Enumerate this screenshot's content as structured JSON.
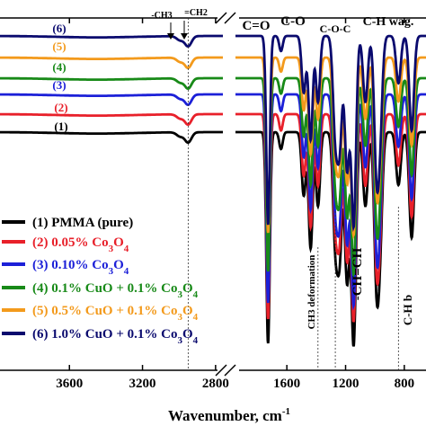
{
  "chart_data": {
    "type": "line",
    "title": "",
    "xlabel": "Wavenumber, cm",
    "xlabel_sup": "-1",
    "ylabel": "",
    "axis_break": true,
    "x_reversed": true,
    "panels": [
      {
        "xlim": [
          3980,
          2760
        ],
        "ticks": [
          3600,
          3200,
          2800
        ]
      },
      {
        "xlim": [
          1950,
          640
        ],
        "ticks": [
          1600,
          1200,
          800
        ]
      }
    ],
    "series": [
      {
        "name": "(1) PMMA (pure)",
        "tag": "(1)",
        "color": "#000000"
      },
      {
        "name": "(2) 0.05% Co3O4",
        "tag": "(2)",
        "color": "#e8202a"
      },
      {
        "name": "(3) 0.10% Co3O4",
        "tag": "(3)",
        "color": "#1c20d8"
      },
      {
        "name": "(4) 0.1% CuO + 0.1% Co3O4",
        "tag": "(4)",
        "color": "#188a18"
      },
      {
        "name": "(5) 0.5% CuO + 0.1% Co3O4",
        "tag": "(5)",
        "color": "#f39a1c"
      },
      {
        "name": "(6) 1.0% CuO + 0.1% Co3O4",
        "tag": "(6)",
        "color": "#0a0a6e"
      }
    ],
    "peaks_left": [
      {
        "x": 2995,
        "depth": 0.12
      },
      {
        "x": 2950,
        "depth": 0.3
      }
    ],
    "peaks_right": [
      {
        "x": 1728,
        "depth": 1.0
      },
      {
        "x": 1640,
        "depth": 0.08
      },
      {
        "x": 1485,
        "depth": 0.3
      },
      {
        "x": 1438,
        "depth": 0.55
      },
      {
        "x": 1388,
        "depth": 0.35
      },
      {
        "x": 1270,
        "depth": 0.5
      },
      {
        "x": 1240,
        "depth": 0.55
      },
      {
        "x": 1190,
        "depth": 0.7
      },
      {
        "x": 1145,
        "depth": 1.0
      },
      {
        "x": 1065,
        "depth": 0.35
      },
      {
        "x": 990,
        "depth": 0.65
      },
      {
        "x": 965,
        "depth": 0.45
      },
      {
        "x": 840,
        "depth": 0.25
      },
      {
        "x": 750,
        "depth": 0.5
      }
    ],
    "annotations": {
      "ch3": "-CH3",
      "ch2": "=CH2",
      "co_double": "C=O",
      "co_single": "C-O",
      "coc": "C-O-C",
      "ch_wag": "C-H wag.",
      "ch3_def": "CH3 deformation",
      "chch": "-CH=CH",
      "ch_bend": "C-H b"
    }
  }
}
